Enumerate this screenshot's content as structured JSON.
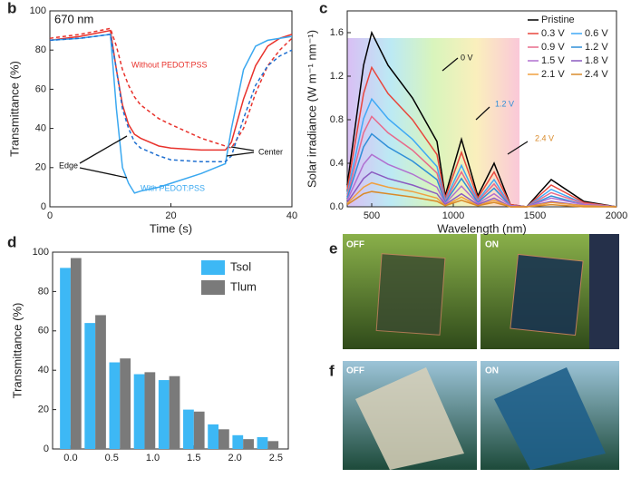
{
  "chart_data": [
    {
      "type": "line",
      "panel_label": "b",
      "xlabel": "Time (s)",
      "ylabel": "Transmittance (%)",
      "annotations": [
        "670 nm",
        "Without PEDOT:PSS",
        "With PEDOT:PSS",
        "Edge",
        "Center"
      ],
      "x": [
        0,
        5,
        10,
        11,
        12,
        13,
        14,
        15,
        18,
        20,
        25,
        29,
        30,
        32,
        34,
        36,
        38,
        40
      ],
      "series": [
        {
          "color": "#e8322c",
          "dashed": false,
          "values": [
            85,
            87,
            90,
            70,
            52,
            42,
            37,
            35,
            31,
            30,
            29,
            29,
            33,
            55,
            72,
            82,
            86,
            88
          ]
        },
        {
          "color": "#e8322c",
          "dashed": true,
          "values": [
            86,
            88,
            91,
            82,
            70,
            62,
            56,
            52,
            45,
            42,
            35,
            31,
            30,
            40,
            58,
            72,
            80,
            86
          ]
        },
        {
          "color": "#3aa8f0",
          "dashed": false,
          "values": [
            85,
            86,
            88,
            50,
            20,
            12,
            7,
            8,
            10,
            12,
            17,
            22,
            40,
            70,
            82,
            85,
            86,
            87
          ]
        },
        {
          "color": "#1f6fd0",
          "dashed": true,
          "values": [
            85,
            86,
            88,
            70,
            50,
            40,
            33,
            30,
            26,
            24,
            23,
            23,
            26,
            45,
            62,
            72,
            77,
            80
          ]
        }
      ],
      "xlim": [
        0,
        40
      ],
      "xticks": [
        0,
        20,
        40
      ],
      "ylim": [
        0,
        100
      ],
      "yticks": [
        0,
        20,
        40,
        60,
        80,
        100
      ]
    },
    {
      "type": "line",
      "panel_label": "c",
      "xlabel": "Wavelength (nm)",
      "ylabel": "Solar irradiance (W m⁻¹ nm⁻¹)",
      "annotations": [
        "0 V",
        "1.2 V",
        "2.4 V"
      ],
      "x": [
        350,
        450,
        500,
        600,
        750,
        900,
        950,
        1050,
        1150,
        1250,
        1350,
        1450,
        1600,
        1800,
        2000
      ],
      "series": [
        {
          "name": "Pristine",
          "color": "#000000",
          "values": [
            0.2,
            1.3,
            1.6,
            1.3,
            1.0,
            0.6,
            0.1,
            0.62,
            0.1,
            0.4,
            0.02,
            0,
            0.25,
            0.05,
            0
          ]
        },
        {
          "name": "0.3 V",
          "color": "#e8463c",
          "values": [
            0.16,
            1.04,
            1.28,
            1.04,
            0.8,
            0.48,
            0.08,
            0.5,
            0.08,
            0.32,
            0.02,
            0,
            0.2,
            0.04,
            0
          ]
        },
        {
          "name": "0.6 V",
          "color": "#3fa9f5",
          "values": [
            0.12,
            0.81,
            0.99,
            0.81,
            0.62,
            0.37,
            0.06,
            0.38,
            0.06,
            0.25,
            0.01,
            0,
            0.16,
            0.03,
            0
          ]
        },
        {
          "name": "0.9 V",
          "color": "#e86a8a",
          "values": [
            0.1,
            0.68,
            0.83,
            0.68,
            0.52,
            0.31,
            0.05,
            0.32,
            0.05,
            0.21,
            0.01,
            0,
            0.13,
            0.03,
            0
          ]
        },
        {
          "name": "1.2 V",
          "color": "#2f8fd8",
          "values": [
            0.08,
            0.55,
            0.67,
            0.55,
            0.42,
            0.25,
            0.04,
            0.26,
            0.04,
            0.17,
            0.01,
            0,
            0.1,
            0.02,
            0
          ]
        },
        {
          "name": "1.5 V",
          "color": "#b070d0",
          "values": [
            0.06,
            0.39,
            0.48,
            0.39,
            0.3,
            0.18,
            0.03,
            0.19,
            0.03,
            0.12,
            0.01,
            0,
            0.08,
            0.02,
            0
          ]
        },
        {
          "name": "1.8 V",
          "color": "#8a5ac0",
          "values": [
            0.04,
            0.26,
            0.32,
            0.26,
            0.2,
            0.12,
            0.02,
            0.12,
            0.02,
            0.08,
            0,
            0,
            0.05,
            0.01,
            0
          ]
        },
        {
          "name": "2.1 V",
          "color": "#f0a040",
          "values": [
            0.03,
            0.18,
            0.22,
            0.18,
            0.14,
            0.08,
            0.01,
            0.09,
            0.01,
            0.06,
            0,
            0,
            0.04,
            0.01,
            0
          ]
        },
        {
          "name": "2.4 V",
          "color": "#d98a2a",
          "values": [
            0.02,
            0.12,
            0.14,
            0.12,
            0.09,
            0.05,
            0.01,
            0.06,
            0.01,
            0.04,
            0,
            0,
            0.02,
            0,
            0
          ]
        }
      ],
      "xlim": [
        350,
        2000
      ],
      "xticks": [
        500,
        1000,
        1500,
        2000
      ],
      "ylim": [
        0,
        1.8
      ],
      "yticks": [
        {
          "value": 0,
          "label": "0.0"
        },
        0.4,
        0.8,
        1.2,
        1.6
      ]
    },
    {
      "type": "bar",
      "panel_label": "d",
      "ylabel": "Transmittance (%)",
      "x": [
        0,
        0.3,
        0.6,
        0.9,
        1.2,
        1.5,
        1.8,
        2.1,
        2.4
      ],
      "series": [
        {
          "name": "Tsol",
          "color": "#3db8f5",
          "values": [
            92,
            64,
            44,
            38,
            35,
            20,
            12.5,
            7,
            6
          ]
        },
        {
          "name": "Tlum",
          "color": "#7a7a7a",
          "values": [
            97,
            68,
            46,
            39,
            37,
            19,
            10,
            5,
            4
          ]
        }
      ],
      "xlim": [
        -0.22,
        2.65
      ],
      "xticks": [
        {
          "value": 0,
          "label": "0.0"
        },
        0.5,
        {
          "value": 1,
          "label": "1.0"
        },
        1.5,
        {
          "value": 2,
          "label": "2.0"
        },
        2.5
      ],
      "ylim": [
        0,
        100
      ],
      "yticks": [
        0,
        20,
        40,
        60,
        80,
        100
      ]
    }
  ],
  "photos": [
    {
      "panel_label": "e",
      "tags": [
        "OFF",
        "ON"
      ]
    },
    {
      "panel_label": "f",
      "tags": [
        "OFF",
        "ON"
      ]
    }
  ]
}
